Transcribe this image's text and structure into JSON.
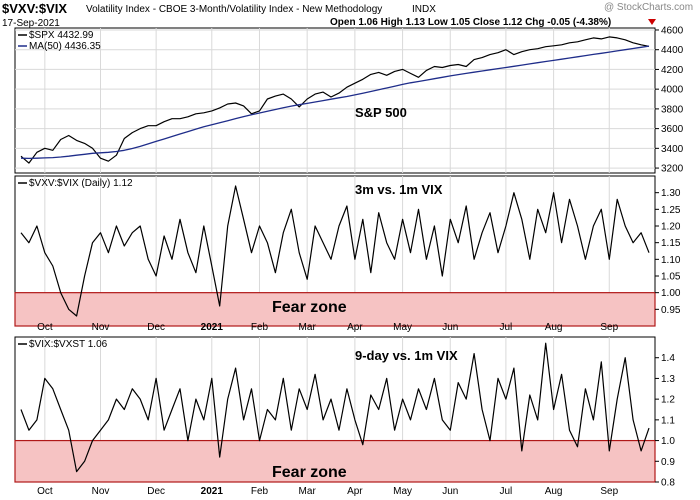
{
  "header": {
    "symbol": "$VXV:$VIX",
    "description": "Volatility Index - CBOE 3-Month/Volatility Index - New Methodology",
    "exchange": "INDX",
    "date": "17-Sep-2021",
    "watermark": "@ StockCharts.com",
    "ohlc": "Open 1.06  High 1.13  Low 1.05  Close 1.12  Chg -0.05 (-4.38%)",
    "down_arrow_color": "#cc0000"
  },
  "colors": {
    "price_line": "#000000",
    "ma_line": "#1f2d8a",
    "fear_fill": "#f6c3c3",
    "fear_border": "#b01818",
    "grid": "#d9d9d9",
    "frame": "#000000"
  },
  "chart_data": [
    {
      "type": "line",
      "panel": "price",
      "legend": [
        "$SPX 4432.99",
        "MA(50) 4436.35"
      ],
      "annotation": "S&P 500",
      "yticks": [
        "4600",
        "4400",
        "4200",
        "4000",
        "3800",
        "3600",
        "3400",
        "3200"
      ],
      "ylim": [
        3150,
        4620
      ],
      "series": [
        {
          "name": "$SPX 4432.99",
          "values": [
            3320,
            3250,
            3360,
            3400,
            3380,
            3490,
            3530,
            3480,
            3450,
            3400,
            3300,
            3270,
            3330,
            3500,
            3560,
            3600,
            3630,
            3630,
            3670,
            3700,
            3700,
            3720,
            3750,
            3760,
            3780,
            3810,
            3850,
            3860,
            3830,
            3750,
            3780,
            3900,
            3930,
            3950,
            3900,
            3820,
            3900,
            3950,
            3970,
            3920,
            3960,
            4020,
            4060,
            4100,
            4150,
            4170,
            4140,
            4180,
            4200,
            4160,
            4120,
            4190,
            4230,
            4220,
            4240,
            4250,
            4230,
            4300,
            4320,
            4350,
            4370,
            4400,
            4350,
            4380,
            4400,
            4410,
            4430,
            4440,
            4450,
            4470,
            4480,
            4500,
            4520,
            4510,
            4530,
            4520,
            4500,
            4470,
            4450,
            4433
          ]
        },
        {
          "name": "MA(50) 4436.35",
          "values": [
            3300,
            3298,
            3300,
            3303,
            3306,
            3312,
            3320,
            3330,
            3340,
            3350,
            3355,
            3360,
            3368,
            3380,
            3398,
            3420,
            3445,
            3470,
            3495,
            3520,
            3545,
            3570,
            3595,
            3618,
            3640,
            3660,
            3680,
            3702,
            3722,
            3740,
            3758,
            3776,
            3794,
            3812,
            3828,
            3842,
            3856,
            3870,
            3884,
            3898,
            3912,
            3926,
            3942,
            3958,
            3976,
            3994,
            4012,
            4030,
            4048,
            4064,
            4078,
            4092,
            4106,
            4120,
            4134,
            4148,
            4160,
            4172,
            4184,
            4196,
            4208,
            4220,
            4232,
            4244,
            4256,
            4268,
            4280,
            4292,
            4304,
            4316,
            4328,
            4340,
            4352,
            4364,
            4376,
            4388,
            4400,
            4412,
            4424,
            4436
          ]
        }
      ]
    },
    {
      "type": "line",
      "panel": "vxv_vix",
      "legend": [
        "$VXV:$VIX (Daily) 1.12"
      ],
      "annotation": "3m vs. 1m VIX",
      "zone_label": "Fear zone",
      "zone_range": [
        0.9,
        1.0
      ],
      "yticks": [
        "1.30",
        "1.25",
        "1.20",
        "1.15",
        "1.10",
        "1.05",
        "1.00",
        "0.95"
      ],
      "ylim": [
        0.9,
        1.35
      ],
      "series": [
        {
          "name": "$VXV:$VIX (Daily) 1.12",
          "values": [
            1.18,
            1.15,
            1.2,
            1.12,
            1.08,
            1.0,
            0.95,
            0.93,
            1.05,
            1.15,
            1.18,
            1.12,
            1.2,
            1.14,
            1.18,
            1.2,
            1.1,
            1.05,
            1.17,
            1.1,
            1.22,
            1.12,
            1.06,
            1.2,
            1.08,
            0.96,
            1.2,
            1.32,
            1.22,
            1.12,
            1.2,
            1.15,
            1.06,
            1.18,
            1.25,
            1.12,
            1.04,
            1.2,
            1.15,
            1.1,
            1.2,
            1.26,
            1.1,
            1.22,
            1.06,
            1.24,
            1.15,
            1.1,
            1.22,
            1.12,
            1.25,
            1.1,
            1.2,
            1.05,
            1.22,
            1.15,
            1.26,
            1.1,
            1.18,
            1.24,
            1.12,
            1.2,
            1.3,
            1.22,
            1.1,
            1.25,
            1.18,
            1.3,
            1.15,
            1.28,
            1.2,
            1.1,
            1.2,
            1.25,
            1.1,
            1.28,
            1.2,
            1.15,
            1.18,
            1.12
          ]
        }
      ]
    },
    {
      "type": "line",
      "panel": "vix_vxst",
      "legend": [
        "$VIX:$VXST 1.06"
      ],
      "annotation": "9-day vs. 1m VIX",
      "zone_label": "Fear zone",
      "zone_range": [
        0.8,
        1.0
      ],
      "yticks": [
        "1.4",
        "1.3",
        "1.2",
        "1.1",
        "1.0",
        "0.9",
        "0.8"
      ],
      "ylim": [
        0.8,
        1.5
      ],
      "series": [
        {
          "name": "$VIX:$VXST 1.06",
          "values": [
            1.15,
            1.05,
            1.1,
            1.3,
            1.25,
            1.15,
            1.05,
            0.85,
            0.9,
            1.0,
            1.05,
            1.1,
            1.2,
            1.15,
            1.25,
            1.2,
            1.1,
            1.3,
            1.05,
            1.15,
            1.25,
            1.0,
            1.2,
            1.1,
            1.3,
            0.92,
            1.2,
            1.35,
            1.1,
            1.25,
            1.0,
            1.15,
            1.1,
            1.3,
            1.05,
            1.25,
            1.15,
            1.32,
            1.1,
            1.2,
            1.05,
            1.25,
            1.1,
            0.98,
            1.22,
            1.15,
            1.3,
            1.05,
            1.2,
            1.1,
            1.25,
            1.15,
            1.3,
            1.1,
            1.05,
            1.28,
            1.2,
            1.42,
            1.15,
            1.0,
            1.3,
            1.2,
            1.35,
            0.95,
            1.22,
            1.1,
            1.47,
            1.15,
            1.32,
            1.05,
            0.97,
            1.25,
            1.1,
            1.38,
            0.95,
            1.2,
            1.4,
            1.1,
            0.95,
            1.06
          ]
        }
      ]
    }
  ],
  "x_axis": {
    "months": [
      "Oct",
      "Nov",
      "Dec",
      "2021",
      "Feb",
      "Mar",
      "Apr",
      "May",
      "Jun",
      "Jul",
      "Aug",
      "Sep"
    ],
    "month_index": [
      3,
      10,
      17,
      24,
      30,
      36,
      42,
      48,
      54,
      61,
      67,
      74
    ],
    "bold_index": 3,
    "points": 80
  }
}
